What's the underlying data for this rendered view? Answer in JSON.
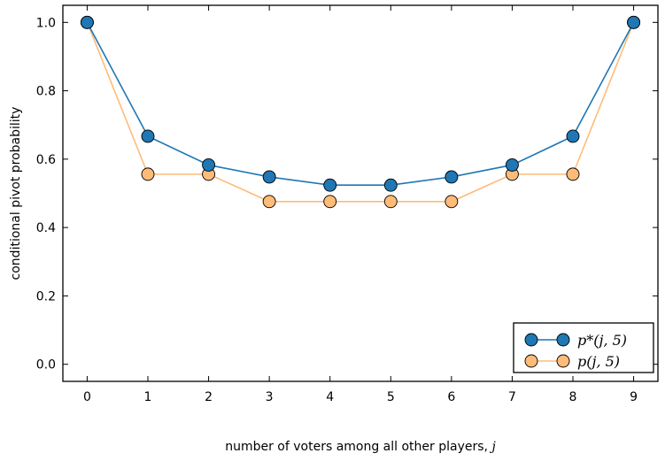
{
  "chart_data": {
    "type": "line",
    "xlabel_text": "number of voters among all other players, ",
    "xlabel_var": "j",
    "ylabel": "conditional pivot probability",
    "x": [
      0,
      1,
      2,
      3,
      4,
      5,
      6,
      7,
      8,
      9
    ],
    "xlim": [
      -0.4,
      9.4
    ],
    "ylim": [
      -0.05,
      1.05
    ],
    "xticks": [
      "0",
      "1",
      "2",
      "3",
      "4",
      "5",
      "6",
      "7",
      "8",
      "9"
    ],
    "yticks": [
      "0.0",
      "0.2",
      "0.4",
      "0.6",
      "0.8",
      "1.0"
    ],
    "grid": false,
    "legend_position": "bottom-right",
    "series": [
      {
        "name": "p*(j, 5)",
        "color": "#1f77b4",
        "values": [
          1.0,
          0.667,
          0.583,
          0.548,
          0.524,
          0.524,
          0.548,
          0.583,
          0.667,
          1.0
        ]
      },
      {
        "name": "p(j, 5)",
        "color": "#ffbb78",
        "values": [
          1.0,
          0.556,
          0.556,
          0.476,
          0.476,
          0.476,
          0.476,
          0.556,
          0.556,
          1.0
        ]
      }
    ]
  }
}
